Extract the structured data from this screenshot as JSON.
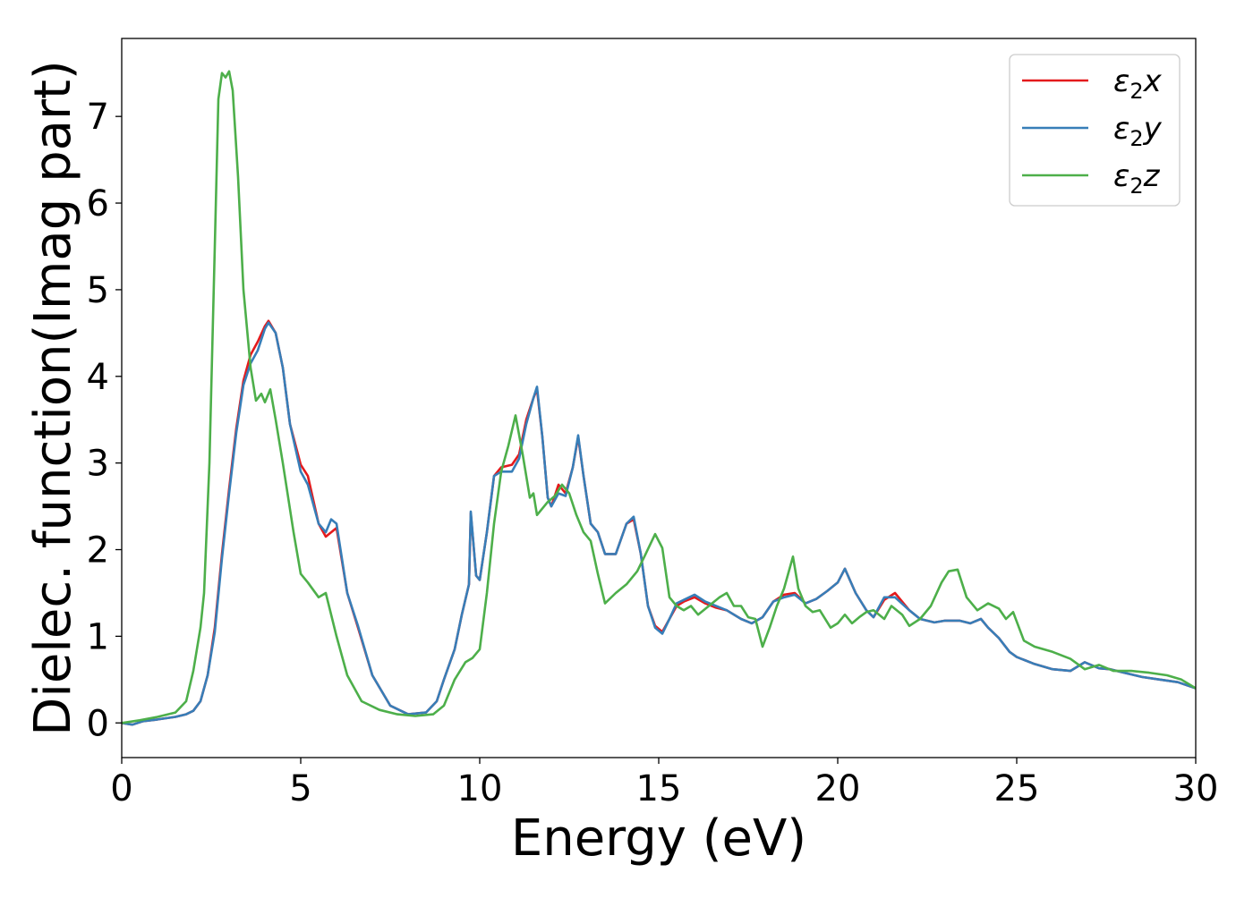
{
  "chart_data": {
    "type": "line",
    "xlabel": "Energy (eV)",
    "ylabel": "Dielec. function(Imag part)",
    "xlim": [
      0,
      30
    ],
    "ylim": [
      -0.4,
      7.9
    ],
    "xticks": [
      0,
      5,
      10,
      15,
      20,
      25,
      30
    ],
    "yticks": [
      0,
      1,
      2,
      3,
      4,
      5,
      6,
      7
    ],
    "grid": false,
    "legend_position": "top-right",
    "series": [
      {
        "name": "ε₂x",
        "legend_main": "ε",
        "legend_sub": "2",
        "legend_tail": "x",
        "color": "#e41a1c",
        "x": [
          0,
          0.3,
          0.6,
          1.0,
          1.5,
          1.8,
          2.0,
          2.2,
          2.4,
          2.6,
          2.8,
          3.0,
          3.2,
          3.4,
          3.6,
          3.8,
          4.0,
          4.1,
          4.3,
          4.5,
          4.7,
          5.0,
          5.2,
          5.5,
          5.7,
          5.85,
          6.0,
          6.3,
          6.6,
          7.0,
          7.5,
          8.0,
          8.5,
          8.8,
          9.0,
          9.3,
          9.5,
          9.7,
          9.75,
          9.9,
          10.0,
          10.2,
          10.4,
          10.6,
          10.9,
          11.1,
          11.3,
          11.5,
          11.6,
          11.75,
          11.9,
          12.0,
          12.2,
          12.4,
          12.6,
          12.75,
          12.9,
          13.1,
          13.3,
          13.5,
          13.8,
          14.1,
          14.3,
          14.5,
          14.7,
          14.9,
          15.1,
          15.3,
          15.5,
          15.7,
          16.0,
          16.3,
          16.6,
          16.9,
          17.3,
          17.6,
          17.9,
          18.2,
          18.5,
          18.8,
          19.1,
          19.4,
          19.7,
          20.0,
          20.2,
          20.5,
          20.8,
          21.0,
          21.3,
          21.6,
          22.0,
          22.3,
          22.7,
          23.0,
          23.4,
          23.7,
          24.0,
          24.2,
          24.5,
          24.8,
          25.0,
          25.5,
          26.0,
          26.5,
          26.9,
          27.3,
          27.6,
          28.0,
          28.5,
          29.0,
          29.5,
          30.0
        ],
        "values": [
          0,
          -0.02,
          0.02,
          0.04,
          0.07,
          0.1,
          0.14,
          0.25,
          0.55,
          1.1,
          1.95,
          2.7,
          3.4,
          3.95,
          4.25,
          4.4,
          4.58,
          4.64,
          4.5,
          4.1,
          3.45,
          2.98,
          2.85,
          2.3,
          2.15,
          2.2,
          2.25,
          1.5,
          1.1,
          0.55,
          0.2,
          0.1,
          0.12,
          0.25,
          0.5,
          0.85,
          1.25,
          1.6,
          2.42,
          1.7,
          1.65,
          2.2,
          2.85,
          2.95,
          2.98,
          3.1,
          3.5,
          3.75,
          3.85,
          3.3,
          2.6,
          2.5,
          2.75,
          2.65,
          2.95,
          3.3,
          2.85,
          2.3,
          2.2,
          1.95,
          1.95,
          2.3,
          2.35,
          1.95,
          1.35,
          1.12,
          1.05,
          1.2,
          1.35,
          1.4,
          1.45,
          1.38,
          1.33,
          1.3,
          1.2,
          1.15,
          1.22,
          1.4,
          1.48,
          1.5,
          1.38,
          1.43,
          1.52,
          1.62,
          1.78,
          1.5,
          1.3,
          1.22,
          1.42,
          1.5,
          1.3,
          1.2,
          1.16,
          1.18,
          1.18,
          1.15,
          1.2,
          1.1,
          0.98,
          0.82,
          0.76,
          0.68,
          0.62,
          0.6,
          0.7,
          0.63,
          0.62,
          0.58,
          0.53,
          0.5,
          0.47,
          0.4
        ]
      },
      {
        "name": "ε₂y",
        "legend_main": "ε",
        "legend_sub": "2",
        "legend_tail": "y",
        "color": "#377eb8",
        "x": [
          0,
          0.3,
          0.6,
          1.0,
          1.5,
          1.8,
          2.0,
          2.2,
          2.4,
          2.6,
          2.8,
          3.0,
          3.2,
          3.4,
          3.6,
          3.8,
          4.0,
          4.1,
          4.3,
          4.5,
          4.7,
          5.0,
          5.2,
          5.5,
          5.7,
          5.85,
          6.0,
          6.3,
          6.6,
          7.0,
          7.5,
          8.0,
          8.5,
          8.8,
          9.0,
          9.3,
          9.5,
          9.7,
          9.75,
          9.9,
          10.0,
          10.2,
          10.4,
          10.6,
          10.9,
          11.1,
          11.3,
          11.5,
          11.6,
          11.75,
          11.9,
          12.0,
          12.2,
          12.4,
          12.6,
          12.75,
          12.9,
          13.1,
          13.3,
          13.5,
          13.8,
          14.1,
          14.3,
          14.5,
          14.7,
          14.9,
          15.1,
          15.3,
          15.5,
          15.7,
          16.0,
          16.3,
          16.6,
          16.9,
          17.3,
          17.6,
          17.9,
          18.2,
          18.5,
          18.8,
          19.1,
          19.4,
          19.7,
          20.0,
          20.2,
          20.5,
          20.8,
          21.0,
          21.3,
          21.6,
          22.0,
          22.3,
          22.7,
          23.0,
          23.4,
          23.7,
          24.0,
          24.2,
          24.5,
          24.8,
          25.0,
          25.5,
          26.0,
          26.5,
          26.9,
          27.3,
          27.6,
          28.0,
          28.5,
          29.0,
          29.5,
          30.0
        ],
        "values": [
          0,
          -0.02,
          0.02,
          0.04,
          0.07,
          0.1,
          0.14,
          0.25,
          0.55,
          1.05,
          1.9,
          2.65,
          3.35,
          3.9,
          4.15,
          4.3,
          4.55,
          4.62,
          4.5,
          4.1,
          3.45,
          2.9,
          2.75,
          2.3,
          2.2,
          2.35,
          2.3,
          1.5,
          1.12,
          0.55,
          0.2,
          0.1,
          0.12,
          0.25,
          0.5,
          0.85,
          1.25,
          1.6,
          2.44,
          1.7,
          1.65,
          2.2,
          2.85,
          2.9,
          2.9,
          3.05,
          3.45,
          3.75,
          3.88,
          3.3,
          2.6,
          2.5,
          2.65,
          2.62,
          2.95,
          3.32,
          2.85,
          2.3,
          2.2,
          1.95,
          1.95,
          2.3,
          2.38,
          1.95,
          1.35,
          1.1,
          1.03,
          1.2,
          1.38,
          1.42,
          1.48,
          1.4,
          1.35,
          1.3,
          1.2,
          1.15,
          1.22,
          1.4,
          1.45,
          1.48,
          1.38,
          1.43,
          1.52,
          1.62,
          1.78,
          1.5,
          1.3,
          1.22,
          1.45,
          1.45,
          1.3,
          1.2,
          1.16,
          1.18,
          1.18,
          1.15,
          1.2,
          1.1,
          0.98,
          0.82,
          0.76,
          0.68,
          0.62,
          0.6,
          0.7,
          0.63,
          0.62,
          0.58,
          0.53,
          0.5,
          0.47,
          0.4
        ]
      },
      {
        "name": "ε₂z",
        "legend_main": "ε",
        "legend_sub": "2",
        "legend_tail": "z",
        "color": "#4daf4a",
        "x": [
          0,
          0.5,
          1.0,
          1.5,
          1.8,
          2.0,
          2.2,
          2.3,
          2.45,
          2.6,
          2.7,
          2.8,
          2.9,
          3.0,
          3.1,
          3.25,
          3.4,
          3.6,
          3.75,
          3.9,
          4.0,
          4.15,
          4.3,
          4.5,
          4.8,
          5.0,
          5.2,
          5.5,
          5.7,
          6.0,
          6.3,
          6.7,
          7.2,
          7.7,
          8.2,
          8.7,
          9.0,
          9.3,
          9.6,
          9.8,
          10.0,
          10.2,
          10.4,
          10.6,
          10.8,
          11.0,
          11.2,
          11.4,
          11.5,
          11.6,
          11.7,
          11.9,
          12.1,
          12.3,
          12.5,
          12.7,
          12.9,
          13.1,
          13.3,
          13.5,
          13.8,
          14.1,
          14.4,
          14.6,
          14.9,
          15.1,
          15.3,
          15.5,
          15.7,
          15.9,
          16.1,
          16.4,
          16.7,
          16.9,
          17.1,
          17.3,
          17.5,
          17.7,
          17.9,
          18.1,
          18.3,
          18.5,
          18.75,
          18.9,
          19.1,
          19.3,
          19.5,
          19.8,
          20.0,
          20.2,
          20.4,
          20.6,
          20.8,
          21.0,
          21.3,
          21.5,
          21.8,
          22.0,
          22.3,
          22.6,
          22.9,
          23.1,
          23.35,
          23.6,
          23.9,
          24.2,
          24.5,
          24.7,
          24.9,
          25.2,
          25.5,
          26.0,
          26.5,
          26.9,
          27.3,
          27.7,
          28.2,
          28.7,
          29.2,
          29.6,
          30.0
        ],
        "values": [
          0,
          0.03,
          0.07,
          0.12,
          0.25,
          0.6,
          1.1,
          1.5,
          3.0,
          5.5,
          7.2,
          7.5,
          7.45,
          7.52,
          7.3,
          6.3,
          5.0,
          4.1,
          3.72,
          3.8,
          3.7,
          3.85,
          3.5,
          3.0,
          2.2,
          1.72,
          1.62,
          1.45,
          1.5,
          1.0,
          0.55,
          0.25,
          0.15,
          0.1,
          0.08,
          0.1,
          0.2,
          0.5,
          0.7,
          0.75,
          0.85,
          1.5,
          2.3,
          2.9,
          3.2,
          3.55,
          3.1,
          2.6,
          2.65,
          2.4,
          2.45,
          2.55,
          2.62,
          2.75,
          2.65,
          2.4,
          2.2,
          2.1,
          1.72,
          1.38,
          1.5,
          1.6,
          1.75,
          1.92,
          2.18,
          2.02,
          1.45,
          1.35,
          1.3,
          1.35,
          1.25,
          1.35,
          1.45,
          1.5,
          1.35,
          1.35,
          1.22,
          1.2,
          0.88,
          1.1,
          1.35,
          1.55,
          1.92,
          1.55,
          1.35,
          1.28,
          1.3,
          1.1,
          1.15,
          1.25,
          1.15,
          1.22,
          1.28,
          1.3,
          1.2,
          1.35,
          1.25,
          1.12,
          1.2,
          1.35,
          1.62,
          1.75,
          1.77,
          1.45,
          1.3,
          1.38,
          1.32,
          1.2,
          1.28,
          0.95,
          0.88,
          0.82,
          0.74,
          0.62,
          0.67,
          0.6,
          0.6,
          0.58,
          0.55,
          0.5,
          0.4
        ]
      }
    ]
  }
}
